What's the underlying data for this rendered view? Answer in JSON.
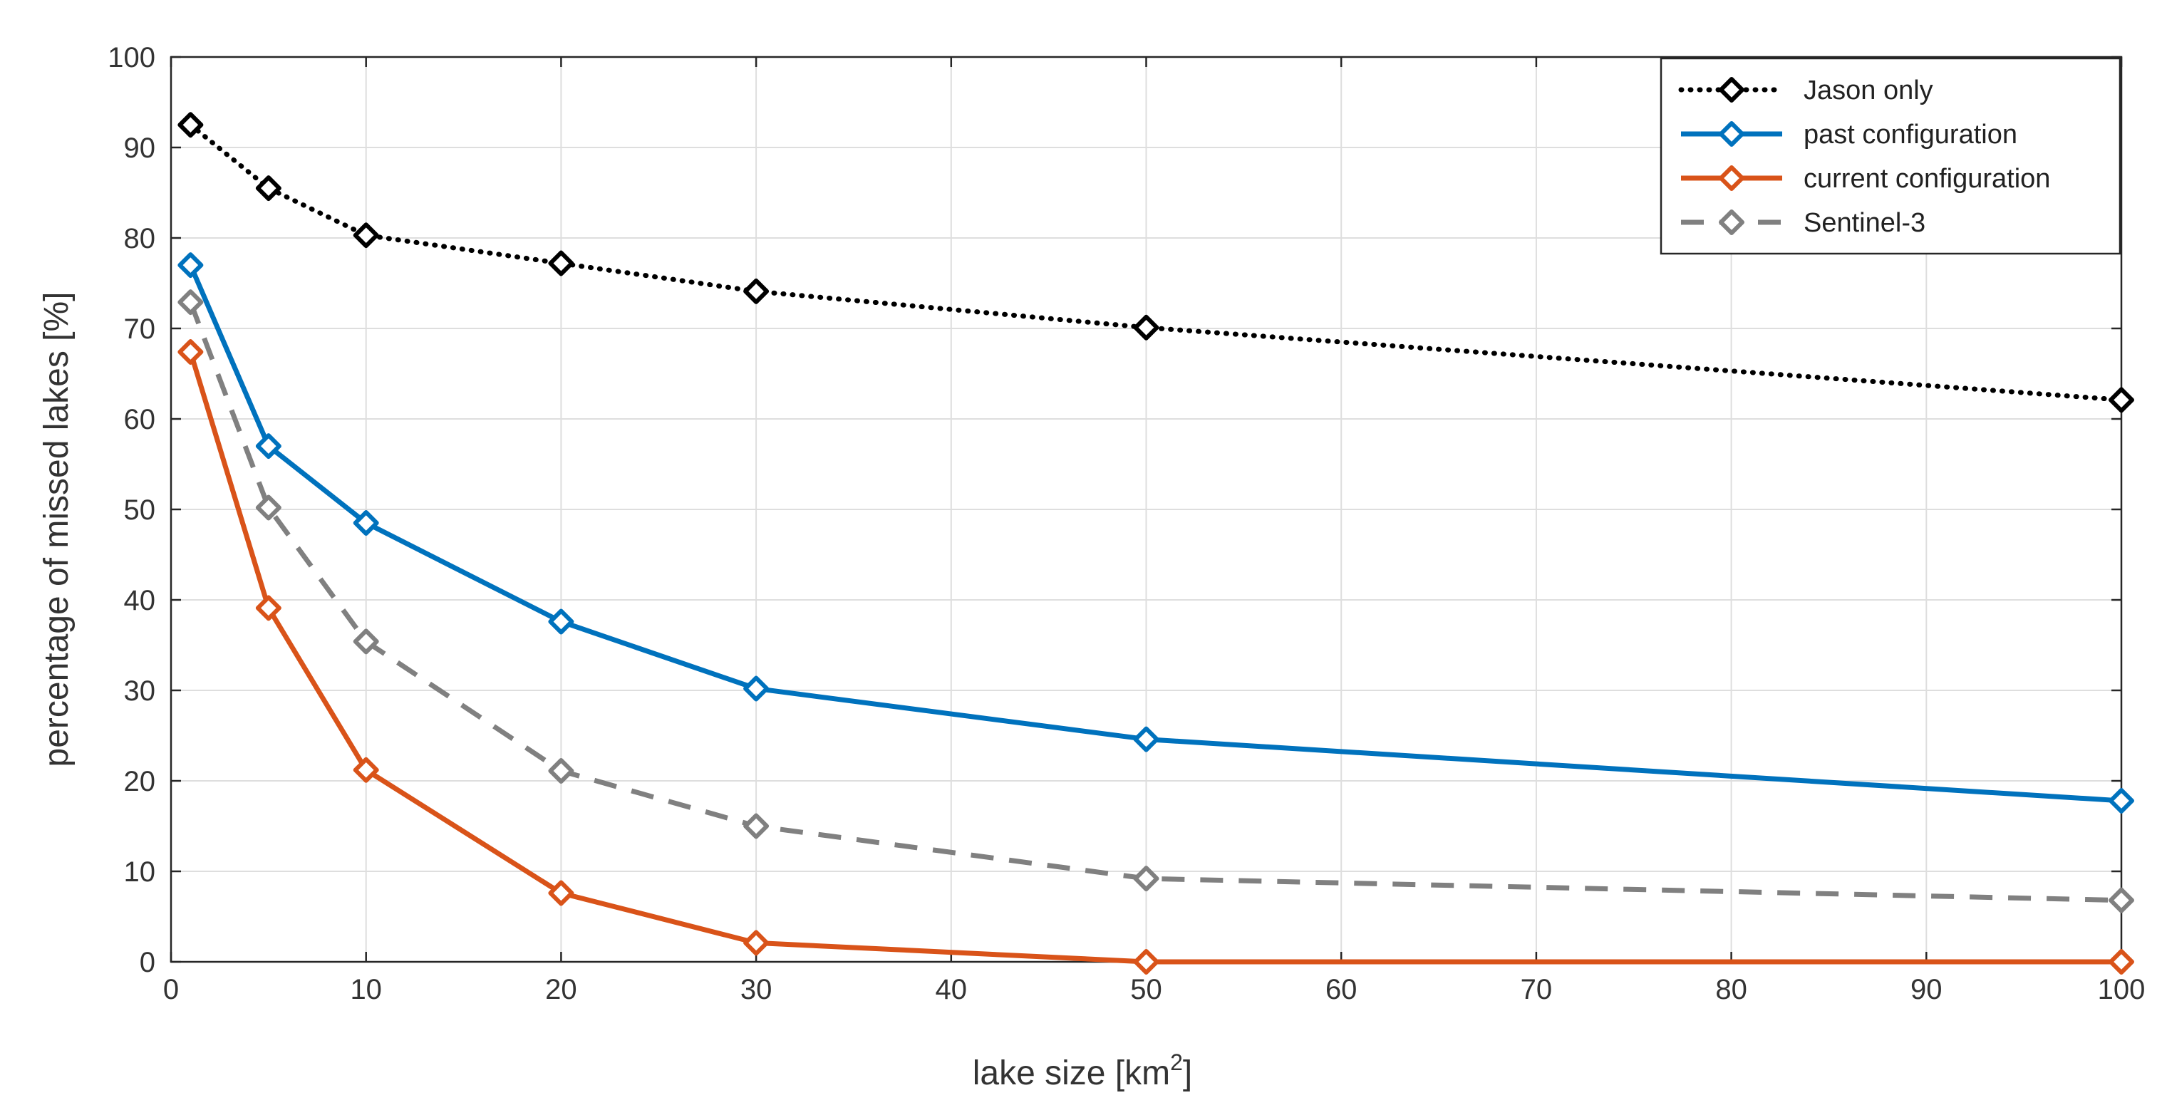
{
  "chart_data": {
    "type": "line",
    "title": "",
    "xlabel": "lake size [km",
    "xlabel_superscript": "2",
    "xlabel_suffix": "]",
    "ylabel": "percentage of missed lakes [%]",
    "xlim": [
      0,
      100
    ],
    "ylim": [
      0,
      100
    ],
    "xticks": [
      0,
      10,
      20,
      30,
      40,
      50,
      60,
      70,
      80,
      90,
      100
    ],
    "yticks": [
      0,
      10,
      20,
      30,
      40,
      50,
      60,
      70,
      80,
      90,
      100
    ],
    "grid": true,
    "legend_position": "top-right",
    "x": [
      1,
      5,
      10,
      20,
      30,
      50,
      100
    ],
    "series": [
      {
        "name": "Jason only",
        "color": "#000000",
        "style": "dotted",
        "values": [
          92.5,
          85.5,
          80.3,
          77.2,
          74.1,
          70.1,
          62.1
        ]
      },
      {
        "name": "past configuration",
        "color": "#0072BD",
        "style": "solid",
        "values": [
          77.0,
          57.0,
          48.5,
          37.6,
          30.2,
          24.6,
          17.8
        ]
      },
      {
        "name": "current configuration",
        "color": "#D95319",
        "style": "solid",
        "values": [
          67.4,
          39.1,
          21.2,
          7.6,
          2.1,
          0.0,
          0.0
        ]
      },
      {
        "name": "Sentinel-3",
        "color": "#808080",
        "style": "dashed",
        "values": [
          72.9,
          50.2,
          35.4,
          21.1,
          15.0,
          9.2,
          6.8
        ]
      }
    ]
  }
}
